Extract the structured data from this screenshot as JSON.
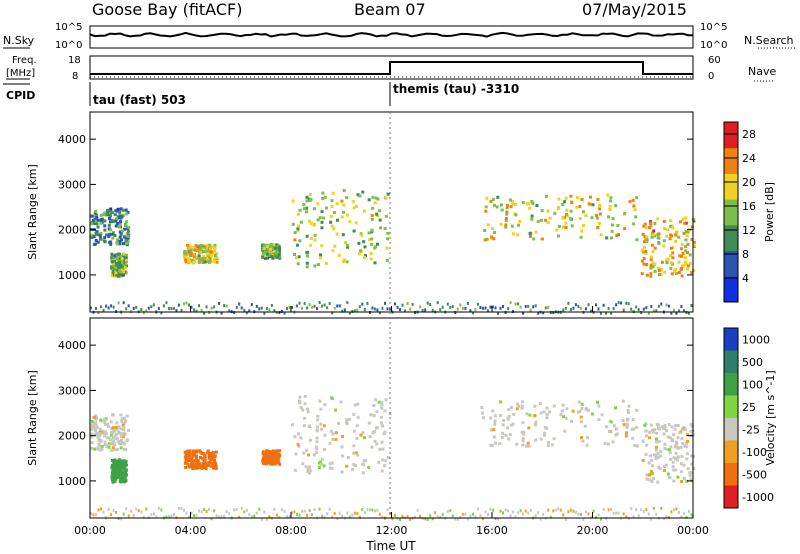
{
  "header": {
    "station": "Goose Bay (fitACF)",
    "beam": "Beam 07",
    "date": "07/May/2015"
  },
  "summary_panel": {
    "left_label_top": "N.Sky",
    "left_scale_top": "10^5",
    "left_scale_bottom": "10^0",
    "right_label_top": "N.Search",
    "right_scale_top": "10^5",
    "right_scale_bottom": "10^0",
    "freq_label_line1": "Freq.",
    "freq_label_line2": "[MHz]",
    "freq_ticks": [
      "18",
      "8"
    ],
    "nave_label": "Nave",
    "nave_ticks": [
      "60",
      "0"
    ],
    "cpid_label": "CPID",
    "cpid_segments": [
      {
        "label": "tau (fast) 503",
        "start_hour": 0,
        "end_hour": 12
      },
      {
        "label": "themis (tau) -3310",
        "start_hour": 12,
        "end_hour": 24
      }
    ]
  },
  "chart_data": [
    {
      "type": "heatmap",
      "name": "power",
      "ylabel": "Slant Range [km]",
      "xlim": [
        0,
        24
      ],
      "ylim": [
        180,
        4600
      ],
      "yticks": [
        "1000",
        "2000",
        "3000",
        "4000"
      ],
      "colorbar": {
        "label": "Power [dB]",
        "ticks": [
          "4",
          "8",
          "12",
          "16",
          "20",
          "24",
          "28"
        ],
        "range": [
          0,
          30
        ],
        "colors": [
          "#1030e0",
          "#2a55b0",
          "#3f8a55",
          "#7cbf4a",
          "#f0d020",
          "#f08010",
          "#e02020"
        ]
      },
      "features": [
        {
          "label": "",
          "t0": 0.0,
          "t1": 1.5,
          "r0": 1700,
          "r1": 2500,
          "level": 10
        },
        {
          "label": "",
          "t0": 0.8,
          "t1": 1.4,
          "r0": 1000,
          "r1": 1500,
          "level": 14
        },
        {
          "label": "",
          "t0": 3.7,
          "t1": 5.0,
          "r0": 1300,
          "r1": 1700,
          "level": 18
        },
        {
          "label": "",
          "t0": 6.8,
          "t1": 7.5,
          "r0": 1400,
          "r1": 1700,
          "level": 14
        },
        {
          "label": "",
          "t0": 8.0,
          "t1": 11.9,
          "r0": 1200,
          "r1": 2900,
          "level": 16
        },
        {
          "label": "",
          "t0": 15.5,
          "t1": 21.8,
          "r0": 1800,
          "r1": 2800,
          "level": 18
        },
        {
          "label": "",
          "t0": 21.9,
          "t1": 24.0,
          "r0": 1000,
          "r1": 2300,
          "level": 20
        }
      ]
    },
    {
      "type": "heatmap",
      "name": "velocity",
      "xlabel": "Time UT",
      "ylabel": "Slant Range [km]",
      "xlim": [
        0,
        24
      ],
      "ylim": [
        180,
        4600
      ],
      "xticks": [
        "00:00",
        "04:00",
        "08:00",
        "12:00",
        "16:00",
        "20:00",
        "00:00"
      ],
      "yticks": [
        "1000",
        "2000",
        "3000",
        "4000"
      ],
      "colorbar": {
        "label": "Velocity [m s^-1]",
        "ticks": [
          "1000",
          "500",
          "100",
          "25",
          "-25",
          "-100",
          "-500",
          "-1000"
        ],
        "colors": [
          "#1a3fc0",
          "#2f7f6a",
          "#3fa045",
          "#7fd640",
          "#c8c8c0",
          "#f0a020",
          "#f07010",
          "#e02020"
        ]
      },
      "features": [
        {
          "label": "",
          "t0": 0.0,
          "t1": 1.5,
          "r0": 1700,
          "r1": 2500,
          "value": 0
        },
        {
          "label": "",
          "t0": 0.8,
          "t1": 1.4,
          "r0": 1000,
          "r1": 1500,
          "value": 200
        },
        {
          "label": "",
          "t0": 3.7,
          "t1": 5.0,
          "r0": 1300,
          "r1": 1700,
          "value": -200
        },
        {
          "label": "",
          "t0": 6.8,
          "t1": 7.5,
          "r0": 1400,
          "r1": 1700,
          "value": -150
        },
        {
          "label": "",
          "t0": 8.0,
          "t1": 11.9,
          "r0": 1200,
          "r1": 2900,
          "value": 0
        },
        {
          "label": "",
          "t0": 15.5,
          "t1": 21.8,
          "r0": 1800,
          "r1": 2800,
          "value": 0
        },
        {
          "label": "",
          "t0": 21.9,
          "t1": 24.0,
          "r0": 1000,
          "r1": 2300,
          "value": 0
        }
      ]
    }
  ]
}
